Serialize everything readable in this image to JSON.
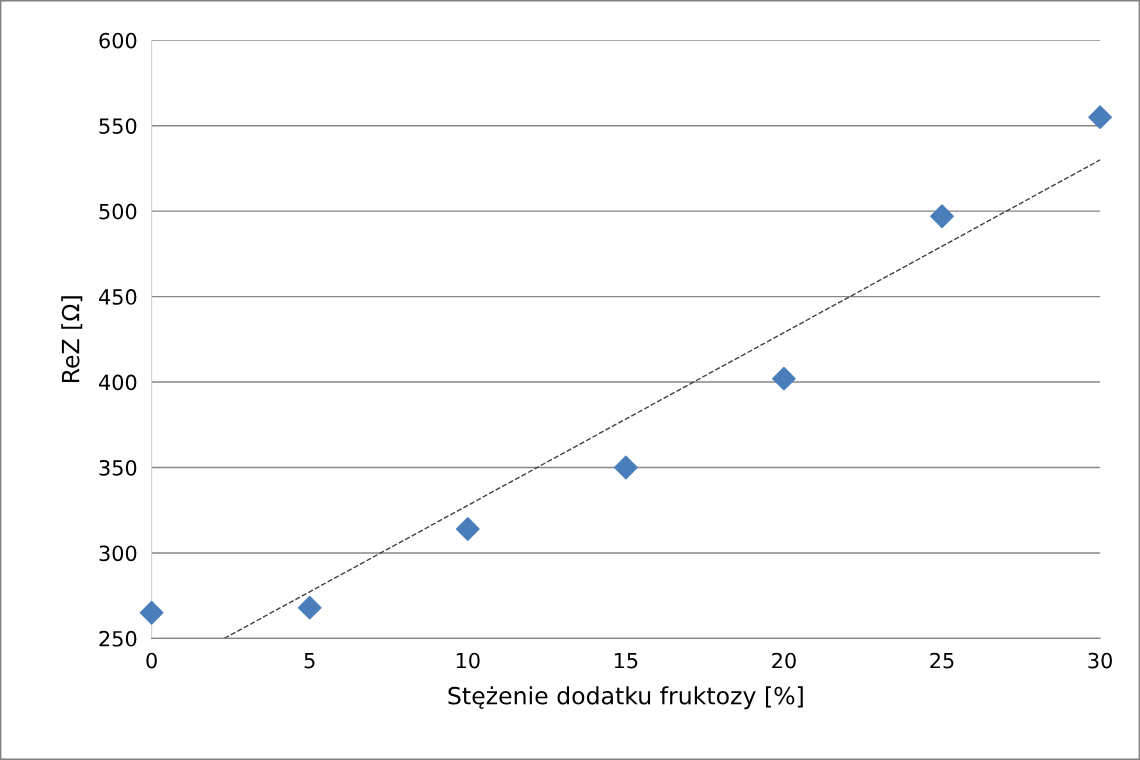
{
  "chart_data": {
    "type": "scatter",
    "xlabel": "Stężenie dodatku fruktozy [%]",
    "ylabel": "ReZ [Ω]",
    "series": [
      {
        "color": "#4a7ebb",
        "marker": "diamond",
        "x": [
          0,
          5,
          10,
          15,
          20,
          25,
          30
        ],
        "values": [
          265,
          268,
          314,
          350,
          402,
          497,
          555
        ]
      },
      {
        "type": "line",
        "color": "#404040",
        "line_style": "dashed",
        "marker": "none",
        "x": [
          2.3,
          30
        ],
        "values": [
          250,
          530
        ]
      }
    ],
    "xlim": [
      0,
      30
    ],
    "xticks": [
      0,
      5,
      10,
      15,
      20,
      25,
      30
    ],
    "ylim": [
      250,
      600
    ],
    "yticks": [
      250,
      300,
      350,
      400,
      450,
      500,
      550,
      600
    ],
    "grid": "y"
  }
}
